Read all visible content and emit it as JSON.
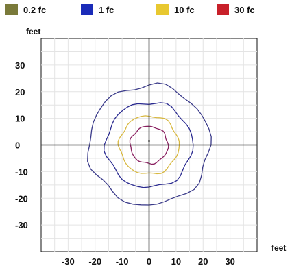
{
  "chart_data": {
    "type": "line",
    "title": "",
    "xlabel": "feet",
    "ylabel": "feet",
    "xlim": [
      -40,
      40
    ],
    "ylim": [
      -40,
      40
    ],
    "x_ticks": [
      -30,
      -20,
      -10,
      0,
      10,
      20,
      30
    ],
    "y_ticks": [
      30,
      20,
      10,
      0,
      -10,
      -20,
      -30
    ],
    "grid": true,
    "legend_position": "top",
    "series": [
      {
        "name": "0.2 fc",
        "color": "#7a7a3a",
        "radius": 22.5,
        "contour_color": "#3b3b8a",
        "points": [
          [
            22.5,
            0
          ],
          [
            0,
            22.5
          ],
          [
            -22.5,
            0
          ],
          [
            0,
            -22.5
          ]
        ]
      },
      {
        "name": "1 fc",
        "color": "#1a2bb8",
        "radius": 16,
        "contour_color": "#2a2a90",
        "points": [
          [
            16,
            0
          ],
          [
            0,
            16
          ],
          [
            -16,
            0
          ],
          [
            0,
            -16
          ]
        ]
      },
      {
        "name": "10 fc",
        "color": "#e8c830",
        "radius": 11,
        "contour_color": "#d8b840",
        "points": [
          [
            11,
            0
          ],
          [
            0,
            11
          ],
          [
            -11,
            0
          ],
          [
            0,
            -11
          ]
        ]
      },
      {
        "name": "30 fc",
        "color": "#c8202a",
        "radius": 7,
        "contour_color": "#8a2060",
        "points": [
          [
            7,
            0
          ],
          [
            0,
            7
          ],
          [
            -7,
            0
          ],
          [
            0,
            -7
          ]
        ]
      }
    ]
  }
}
